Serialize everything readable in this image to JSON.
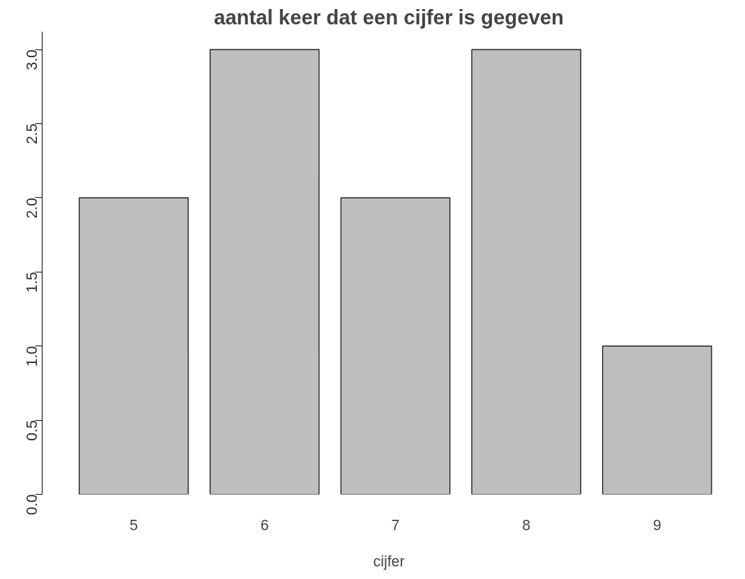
{
  "chart_data": {
    "type": "bar",
    "title": "aantal keer dat een cijfer is gegeven",
    "xlabel": "cijfer",
    "categories": [
      "5",
      "6",
      "7",
      "8",
      "9"
    ],
    "values": [
      2,
      3,
      2,
      3,
      1
    ],
    "color": "#bebebe",
    "ylim": [
      0,
      3.12
    ],
    "yticks": [
      {
        "value": 0,
        "label": "0.0"
      },
      {
        "value": 0.5,
        "label": "0.5"
      },
      {
        "value": 1,
        "label": "1.0"
      },
      {
        "value": 1.5,
        "label": "1.5"
      },
      {
        "value": 2,
        "label": "2.0"
      },
      {
        "value": 2.5,
        "label": "2.5"
      },
      {
        "value": 3,
        "label": "3.0"
      }
    ],
    "grid": false
  }
}
